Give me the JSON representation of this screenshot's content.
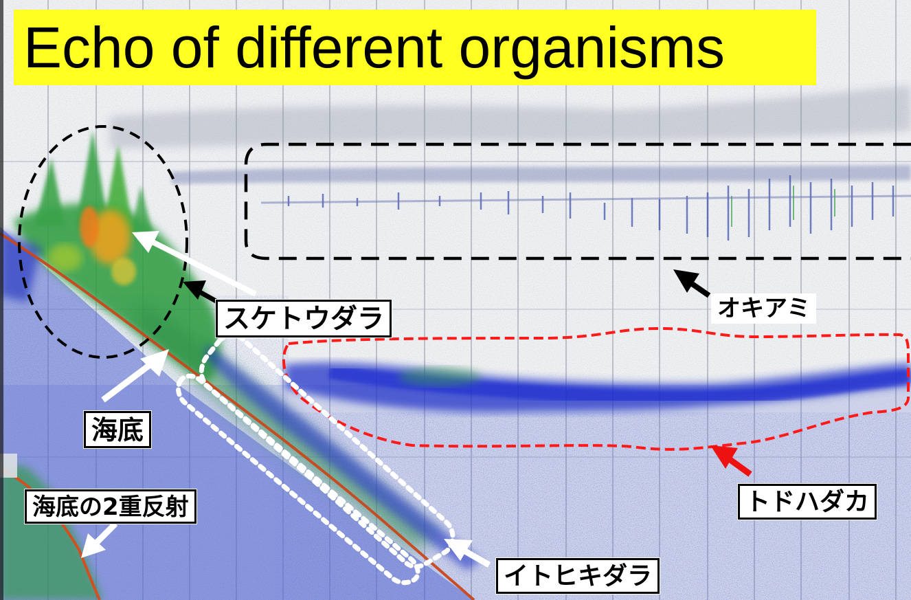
{
  "title": "Echo of different organisms",
  "labels": {
    "walleye_pollock": "スケトウダラ",
    "krill": "オキアミ",
    "seafloor": "海底",
    "seafloor_double_reflection": "海底の2重反射",
    "northern_lampfish": "トドハダカ",
    "threadfin_hakeling": "イトヒキダラ"
  },
  "colors": {
    "title_background": "#ffff22",
    "echogram_background": "#eef0f2",
    "echo_weak": "#3b4fc8",
    "echo_medium": "#3aa24a",
    "echo_strong": "#f2a11c",
    "seafloor_line": "#c8471c",
    "outline_red_dashed": "#ff1a1a",
    "outline_black_dashed": "#000000",
    "outline_white_dotted": "#ffffff",
    "arrow_white": "#ffffff",
    "arrow_black": "#000000",
    "arrow_red": "#ee1111"
  }
}
